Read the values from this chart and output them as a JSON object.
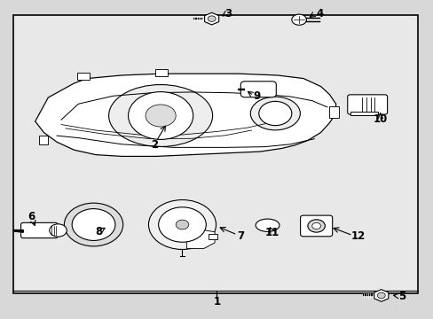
{
  "background_color": "#d8d8d8",
  "box_bg": "#e8e8e8",
  "line_color": "#000000",
  "text_color": "#000000",
  "fig_width": 4.89,
  "fig_height": 3.6,
  "dpi": 100
}
